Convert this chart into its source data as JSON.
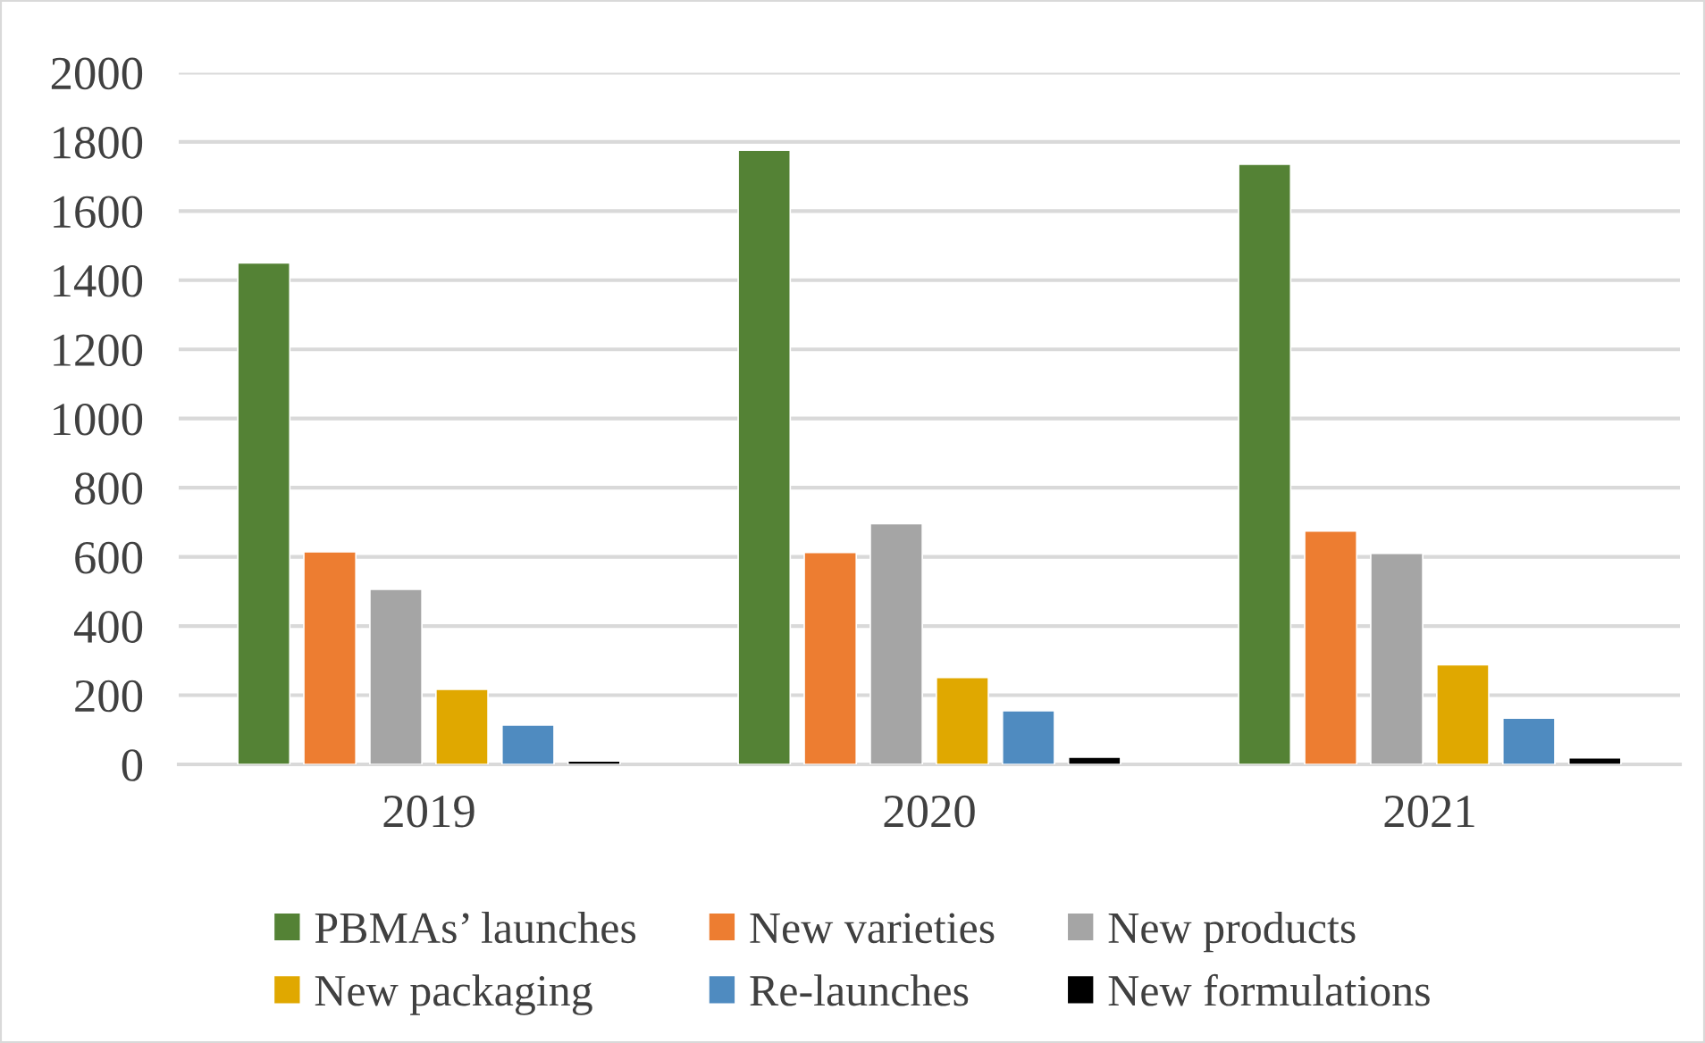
{
  "chart_data": {
    "type": "bar",
    "categories": [
      "2019",
      "2020",
      "2021"
    ],
    "series": [
      {
        "name": "PBMAs’ launches",
        "color": "#548235",
        "values": [
          1450,
          1776,
          1735
        ]
      },
      {
        "name": "New varieties",
        "color": "#ed7d31",
        "values": [
          615,
          613,
          675
        ]
      },
      {
        "name": "New products",
        "color": "#a5a5a5",
        "values": [
          506,
          696,
          610
        ]
      },
      {
        "name": "New packaging",
        "color": "#e0a800",
        "values": [
          217,
          251,
          288
        ]
      },
      {
        "name": "Re-launches",
        "color": "#4f8bc0",
        "values": [
          114,
          155,
          134
        ]
      },
      {
        "name": "New formulations",
        "color": "#000000",
        "values": [
          10,
          21,
          19
        ]
      }
    ],
    "ylim": [
      0,
      2000
    ],
    "yticks": [
      0,
      200,
      400,
      600,
      800,
      1000,
      1200,
      1400,
      1600,
      1800,
      2000
    ],
    "grid": "y",
    "legend": "bottom"
  }
}
